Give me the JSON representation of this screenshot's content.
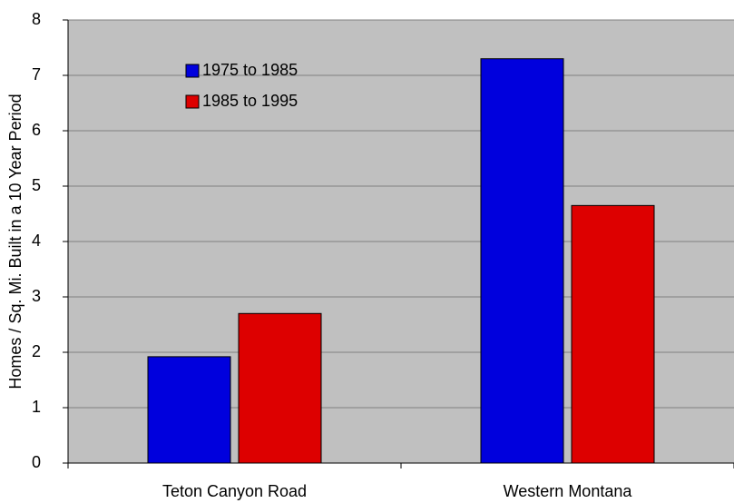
{
  "chart_data": {
    "type": "bar",
    "y_axis_label": "Homes / Sq. Mi. Built in a 10 Year Period",
    "categories": [
      "Teton Canyon Road",
      "Western Montana"
    ],
    "series": [
      {
        "name": "1975 to 1985",
        "color": "#0000dd",
        "values": [
          1.92,
          7.3
        ]
      },
      {
        "name": "1985 to 1995",
        "color": "#dd0000",
        "values": [
          2.7,
          4.65
        ]
      }
    ],
    "ylim": [
      0,
      8
    ],
    "yticks": [
      0,
      1,
      2,
      3,
      4,
      5,
      6,
      7,
      8
    ],
    "grid": true,
    "legend": "upper left"
  }
}
